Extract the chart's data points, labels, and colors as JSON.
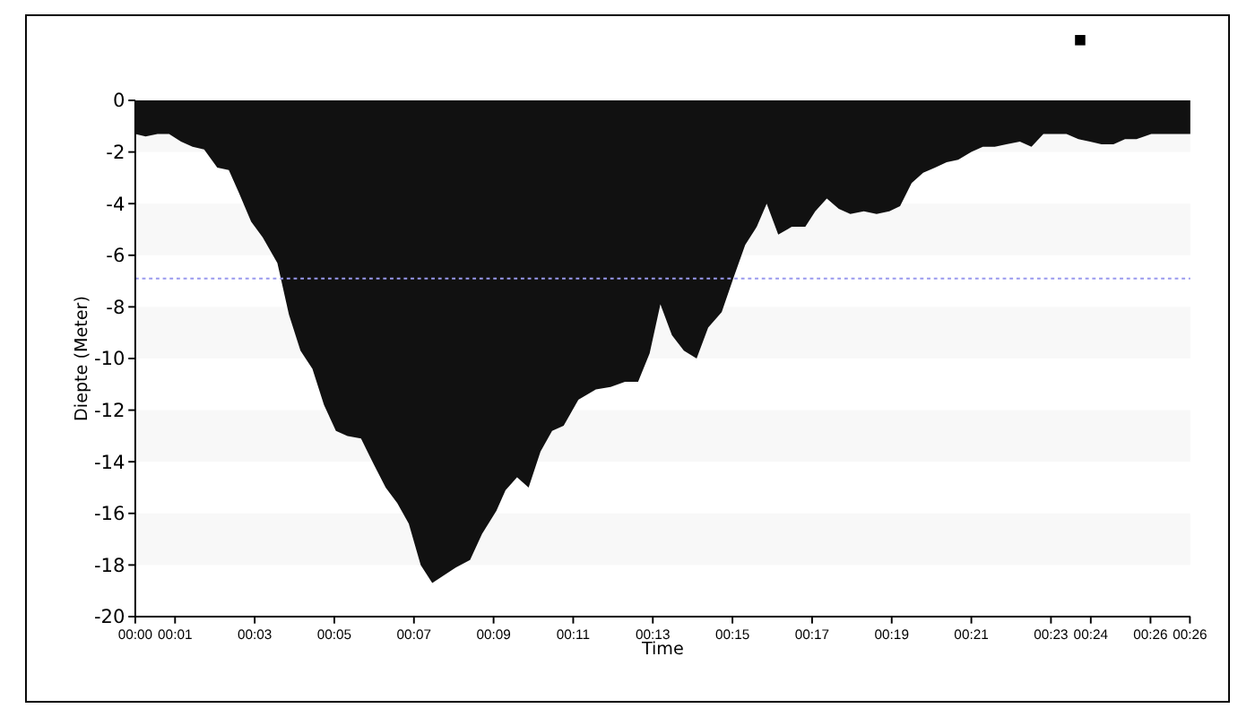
{
  "chart_data": {
    "type": "area",
    "xlabel": "Time",
    "ylabel": "Diepte (Meter)",
    "x": [
      0,
      0.26,
      0.56,
      0.85,
      1.15,
      1.44,
      1.73,
      2.06,
      2.35,
      2.61,
      2.91,
      3.2,
      3.57,
      3.86,
      4.15,
      4.45,
      4.74,
      5.04,
      5.33,
      5.67,
      5.99,
      6.29,
      6.58,
      6.87,
      7.17,
      7.46,
      7.75,
      8.05,
      8.41,
      8.71,
      9.07,
      9.3,
      9.59,
      9.88,
      10.18,
      10.47,
      10.76,
      11.13,
      11.57,
      11.94,
      12.3,
      12.63,
      12.92,
      13.19,
      13.48,
      13.78,
      14.1,
      14.39,
      14.73,
      15.02,
      15.32,
      15.61,
      15.86,
      16.15,
      16.49,
      16.83,
      17.08,
      17.37,
      17.67,
      17.96,
      18.3,
      18.62,
      18.94,
      19.21,
      19.5,
      19.79,
      20.09,
      20.38,
      20.67,
      21.0,
      21.29,
      21.59,
      21.88,
      22.22,
      22.51,
      22.81,
      23.39,
      23.69,
      23.98,
      24.27,
      24.57,
      24.86,
      25.15,
      25.52,
      26.5
    ],
    "series": [
      {
        "color": "#111111",
        "values": [
          -1.3,
          -1.4,
          -1.3,
          -1.3,
          -1.6,
          -1.8,
          -1.9,
          -2.6,
          -2.7,
          -3.6,
          -4.7,
          -5.3,
          -6.3,
          -8.3,
          -9.7,
          -10.4,
          -11.8,
          -12.8,
          -13.0,
          -13.1,
          -14.1,
          -15.0,
          -15.6,
          -16.4,
          -18.0,
          -18.7,
          -18.4,
          -18.1,
          -17.8,
          -16.8,
          -15.9,
          -15.1,
          -14.6,
          -15.0,
          -13.6,
          -12.8,
          -12.6,
          -11.6,
          -11.2,
          -11.1,
          -10.9,
          -10.9,
          -9.8,
          -7.9,
          -9.1,
          -9.7,
          -10.0,
          -8.8,
          -8.2,
          -6.9,
          -5.6,
          -4.9,
          -4.0,
          -5.2,
          -4.9,
          -4.9,
          -4.3,
          -3.8,
          -4.2,
          -4.4,
          -4.3,
          -4.4,
          -4.3,
          -4.1,
          -3.2,
          -2.8,
          -2.6,
          -2.4,
          -2.3,
          -2.0,
          -1.8,
          -1.8,
          -1.7,
          -1.6,
          -1.8,
          -1.3,
          -1.3,
          -1.5,
          -1.6,
          -1.7,
          -1.7,
          -1.5,
          -1.5,
          -1.3,
          -1.3
        ]
      }
    ],
    "xlim": [
      0,
      26.5
    ],
    "xticks": [
      {
        "value": 0,
        "label": "00:00"
      },
      {
        "value": 1,
        "label": "00:01"
      },
      {
        "value": 3,
        "label": "00:03"
      },
      {
        "value": 5,
        "label": "00:05"
      },
      {
        "value": 7,
        "label": "00:07"
      },
      {
        "value": 9,
        "label": "00:09"
      },
      {
        "value": 11,
        "label": "00:11"
      },
      {
        "value": 13,
        "label": "00:13"
      },
      {
        "value": 15,
        "label": "00:15"
      },
      {
        "value": 17,
        "label": "00:17"
      },
      {
        "value": 19,
        "label": "00:19"
      },
      {
        "value": 21,
        "label": "00:21"
      },
      {
        "value": 23,
        "label": "00:23"
      },
      {
        "value": 24,
        "label": "00:24"
      },
      {
        "value": 25.5,
        "label": "00:26"
      },
      {
        "value": 26.49,
        "label": "00:26"
      }
    ],
    "ylim": [
      -20,
      0
    ],
    "yticks": [
      -20,
      -18,
      -16,
      -14,
      -12,
      -10,
      -8,
      -6,
      -4,
      -2,
      0
    ],
    "bands": [
      {
        "axis": "y",
        "from": -2,
        "to": 0,
        "color": "#f8f8f8"
      },
      {
        "axis": "y",
        "from": -6,
        "to": -4,
        "color": "#f8f8f8"
      },
      {
        "axis": "y",
        "from": -10,
        "to": -8,
        "color": "#f8f8f8"
      },
      {
        "axis": "y",
        "from": -14,
        "to": -12,
        "color": "#f8f8f8"
      },
      {
        "axis": "y",
        "from": -18,
        "to": -16,
        "color": "#f8f8f8"
      }
    ],
    "ref_lines": [
      {
        "axis": "y",
        "value": -6.9,
        "color": "#9999ee",
        "line_style": "dotted"
      }
    ]
  }
}
